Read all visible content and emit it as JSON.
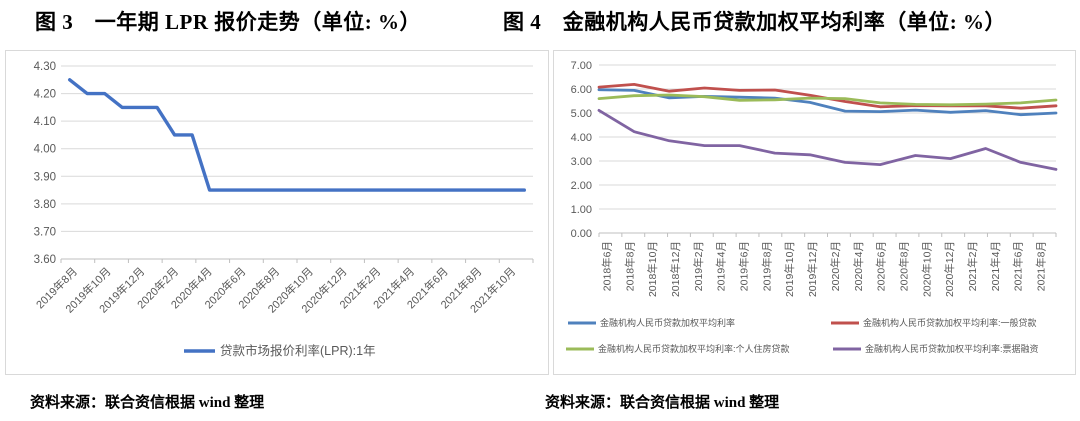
{
  "titles": {
    "left": "图 3　一年期 LPR 报价走势（单位: %）",
    "right": "图 4　金融机构人民币贷款加权平均利率（单位: %）"
  },
  "sources": {
    "left": "资料来源：联合资信根据 wind 整理",
    "right": "资料来源：联合资信根据 wind 整理"
  },
  "colors": {
    "lpr_line": "#4472C4",
    "weighted_avg": "#4F81BD",
    "general_loans": "#C0504D",
    "housing_loans": "#9BBB59",
    "bill_financing": "#8064A2",
    "gridline": "#d9d9d9",
    "axis": "#bfbfbf",
    "tick_text": "#595959"
  },
  "chart_data": [
    {
      "type": "line",
      "title": "图 3 一年期 LPR 报价走势（单位: %）",
      "ylim": [
        3.6,
        4.3
      ],
      "ytick_step": 0.1,
      "ytick_labels": [
        "4.30",
        "4.20",
        "4.10",
        "4.00",
        "3.90",
        "3.80",
        "3.70",
        "3.60"
      ],
      "grid": true,
      "legend_position": "bottom-center",
      "x_labels": [
        "2019年8月",
        "2019年10月",
        "2019年12月",
        "2020年2月",
        "2020年4月",
        "2020年6月",
        "2020年8月",
        "2020年10月",
        "2020年12月",
        "2021年2月",
        "2021年4月",
        "2021年6月",
        "2021年8月",
        "2021年10月"
      ],
      "x_note": "monthly points 2019年8月–2021年10月, labels every 2 months",
      "series": [
        {
          "name": "贷款市场报价利率(LPR):1年",
          "color": "#4472C4",
          "values": [
            4.25,
            4.2,
            4.2,
            4.15,
            4.15,
            4.15,
            4.05,
            4.05,
            3.85,
            3.85,
            3.85,
            3.85,
            3.85,
            3.85,
            3.85,
            3.85,
            3.85,
            3.85,
            3.85,
            3.85,
            3.85,
            3.85,
            3.85,
            3.85,
            3.85,
            3.85,
            3.85
          ]
        }
      ]
    },
    {
      "type": "line",
      "title": "图 4 金融机构人民币贷款加权平均利率（单位: %）",
      "ylim": [
        0.0,
        7.0
      ],
      "ytick_step": 1.0,
      "ytick_labels": [
        "7.00",
        "6.00",
        "5.00",
        "4.00",
        "3.00",
        "2.00",
        "1.00",
        "0.00"
      ],
      "grid": true,
      "legend_position": "bottom-grid-2x2",
      "x_labels": [
        "2018年6月",
        "2018年8月",
        "2018年10月",
        "2018年12月",
        "2019年2月",
        "2019年4月",
        "2019年6月",
        "2019年8月",
        "2019年10月",
        "2019年12月",
        "2020年2月",
        "2020年4月",
        "2020年6月",
        "2020年8月",
        "2020年10月",
        "2020年12月",
        "2021年2月",
        "2021年4月",
        "2021年6月",
        "2021年8月"
      ],
      "x_note": "quarterly data points spanning 2018年6月–2021年8月, labels every 2 months",
      "series": [
        {
          "name": "金融机构人民币贷款加权平均利率",
          "color": "#4F81BD",
          "values": [
            5.97,
            5.94,
            5.63,
            5.69,
            5.66,
            5.62,
            5.44,
            5.08,
            5.06,
            5.12,
            5.03,
            5.1,
            4.93,
            5.0
          ]
        },
        {
          "name": "金融机构人民币贷款加权平均利率:一般贷款",
          "color": "#C0504D",
          "values": [
            6.08,
            6.19,
            5.91,
            6.04,
            5.94,
            5.96,
            5.74,
            5.48,
            5.26,
            5.31,
            5.3,
            5.3,
            5.2,
            5.3
          ]
        },
        {
          "name": "金融机构人民币贷款加权平均利率:个人住房贷款",
          "color": "#9BBB59",
          "values": [
            5.6,
            5.72,
            5.75,
            5.68,
            5.53,
            5.55,
            5.62,
            5.6,
            5.42,
            5.36,
            5.34,
            5.37,
            5.42,
            5.54
          ]
        },
        {
          "name": "金融机构人民币贷款加权平均利率:票据融资",
          "color": "#8064A2",
          "values": [
            5.11,
            4.22,
            3.84,
            3.64,
            3.64,
            3.33,
            3.26,
            2.94,
            2.85,
            3.23,
            3.1,
            3.52,
            2.94,
            2.65
          ]
        }
      ]
    }
  ]
}
